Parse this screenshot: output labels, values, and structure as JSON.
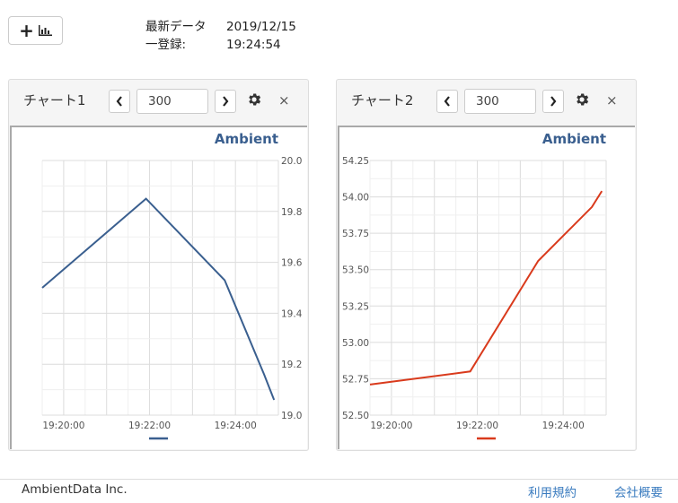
{
  "toolbar": {
    "add_chart_label": "+",
    "add_chart_icon": "bar-chart-icon"
  },
  "meta": {
    "latest_label": "最新データ",
    "latest_date": "2019/12/15",
    "record_label": "一登録:",
    "record_time": "19:24:54"
  },
  "panels": [
    {
      "title": "チャート1",
      "range_value": "300",
      "close_label": "×",
      "brand": "Ambient"
    },
    {
      "title": "チャート2",
      "range_value": "300",
      "close_label": "×",
      "brand": "Ambient"
    }
  ],
  "chart_data": [
    {
      "type": "line",
      "title": "",
      "brand_label": "Ambient",
      "x_ticks": [
        "19:20:00",
        "19:22:00",
        "19:24:00"
      ],
      "y_ticks": [
        "19.0",
        "19.2",
        "19.4",
        "19.6",
        "19.8",
        "20.0"
      ],
      "ylim": [
        19.0,
        20.0
      ],
      "xlim": [
        "19:19:30",
        "19:25:00"
      ],
      "grid": true,
      "axis_side": "right",
      "series": [
        {
          "color": "#3a5f8f",
          "points": [
            {
              "x": "19:19:30",
              "y": 19.5
            },
            {
              "x": "19:21:55",
              "y": 19.85
            },
            {
              "x": "19:23:45",
              "y": 19.53
            },
            {
              "x": "19:24:40",
              "y": 19.16
            },
            {
              "x": "19:24:54",
              "y": 19.06
            }
          ]
        }
      ],
      "legend": "bottom-center"
    },
    {
      "type": "line",
      "title": "",
      "brand_label": "Ambient",
      "x_ticks": [
        "19:20:00",
        "19:22:00",
        "19:24:00"
      ],
      "y_ticks": [
        "52.50",
        "52.75",
        "53.00",
        "53.25",
        "53.50",
        "53.75",
        "54.00",
        "54.25"
      ],
      "ylim": [
        52.5,
        54.25
      ],
      "xlim": [
        "19:19:30",
        "19:25:00"
      ],
      "grid": true,
      "axis_side": "left",
      "series": [
        {
          "color": "#d93a1c",
          "points": [
            {
              "x": "19:19:30",
              "y": 52.71
            },
            {
              "x": "19:21:50",
              "y": 52.8
            },
            {
              "x": "19:23:25",
              "y": 53.56
            },
            {
              "x": "19:24:40",
              "y": 53.93
            },
            {
              "x": "19:24:54",
              "y": 54.04
            }
          ]
        }
      ],
      "legend": "bottom-center"
    }
  ],
  "footer": {
    "company": "AmbientData Inc.",
    "terms_link": "利用規約",
    "company_link": "会社概要"
  }
}
